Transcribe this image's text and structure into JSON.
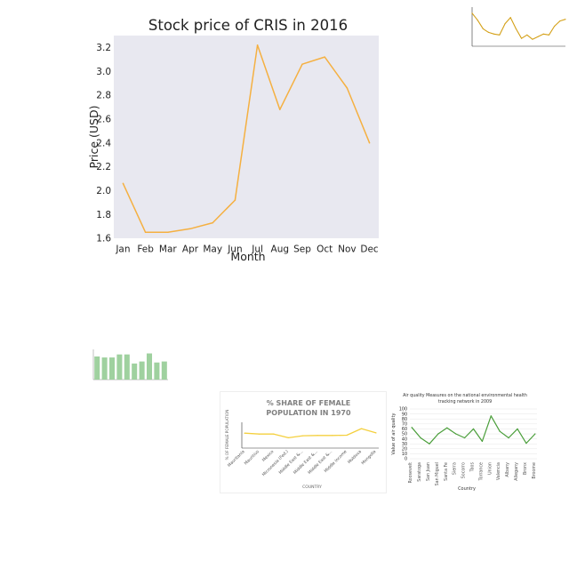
{
  "chart_data": [
    {
      "type": "line",
      "title": "Stock price of CRIS in 2016",
      "xlabel": "Month",
      "ylabel": "Price (USD)",
      "categories": [
        "Jan",
        "Feb",
        "Mar",
        "Apr",
        "May",
        "Jun",
        "Jul",
        "Aug",
        "Sep",
        "Oct",
        "Nov",
        "Dec"
      ],
      "values": [
        2.06,
        1.65,
        1.65,
        1.68,
        1.73,
        1.92,
        3.22,
        2.68,
        3.06,
        3.12,
        2.86,
        2.4
      ],
      "ylim": [
        1.6,
        3.3
      ],
      "yticks": [
        "1.6",
        "1.8",
        "2.0",
        "2.2",
        "2.4",
        "2.6",
        "2.8",
        "3.0",
        "3.2"
      ],
      "grid": false,
      "colors": {
        "line": "#f5b041",
        "plot_bg": "#e8e8f0"
      }
    },
    {
      "type": "line",
      "title": "",
      "xlabel": "",
      "ylabel": "",
      "values": [
        7.8,
        7.0,
        6.0,
        5.6,
        5.4,
        5.3,
        6.6,
        7.3,
        6.0,
        4.9,
        5.3,
        4.8,
        5.1,
        5.4,
        5.3,
        6.3,
        6.9,
        7.1
      ],
      "ylim": [
        4,
        8.5
      ],
      "colors": {
        "line": "#d4a017"
      }
    },
    {
      "type": "bar",
      "title": "",
      "xlabel": "",
      "ylabel": "",
      "values": [
        23,
        22,
        22,
        25,
        25,
        16,
        18,
        26,
        17,
        18
      ],
      "ylim": [
        0,
        30
      ],
      "colors": {
        "bar": "#9fd19f"
      }
    },
    {
      "type": "line",
      "title": "% SHARE OF FEMALE POPULATION IN 1970",
      "xlabel": "COUNTRY",
      "ylabel": "% OF FEMALE POPULATION",
      "categories": [
        "Mauritania",
        "Mauritius",
        "Mexico",
        "Micronesia (Fed.)",
        "Middle East &...",
        "Middle East &...",
        "Middle East &...",
        "Middle income",
        "Moldova",
        "Mongolia"
      ],
      "values": [
        50.2,
        49.9,
        49.9,
        48.6,
        49.3,
        49.4,
        49.4,
        49.5,
        51.8,
        50.3
      ],
      "ylim": [
        45,
        54
      ],
      "colors": {
        "line": "#f4d03f"
      }
    },
    {
      "type": "line",
      "title": "Air quality Measures on the national environmental health tracking network in 2009",
      "xlabel": "Country",
      "ylabel": "Value of air quality",
      "categories": [
        "Roosevelt",
        "Saratoga",
        "San Juan",
        "San Miguel",
        "Santa Fe",
        "Sierra",
        "Socorro",
        "Taos",
        "Torrance",
        "Union",
        "Valencia",
        "Albany",
        "Allegany",
        "Bronx",
        "Broome"
      ],
      "values": [
        63,
        42,
        30,
        50,
        62,
        50,
        42,
        60,
        35,
        86,
        55,
        42,
        60,
        31,
        50
      ],
      "ylim": [
        0,
        100
      ],
      "yticks": [
        "0",
        "10",
        "20",
        "30",
        "40",
        "50",
        "60",
        "70",
        "80",
        "90",
        "100"
      ],
      "colors": {
        "line": "#4a9e3a"
      }
    }
  ]
}
